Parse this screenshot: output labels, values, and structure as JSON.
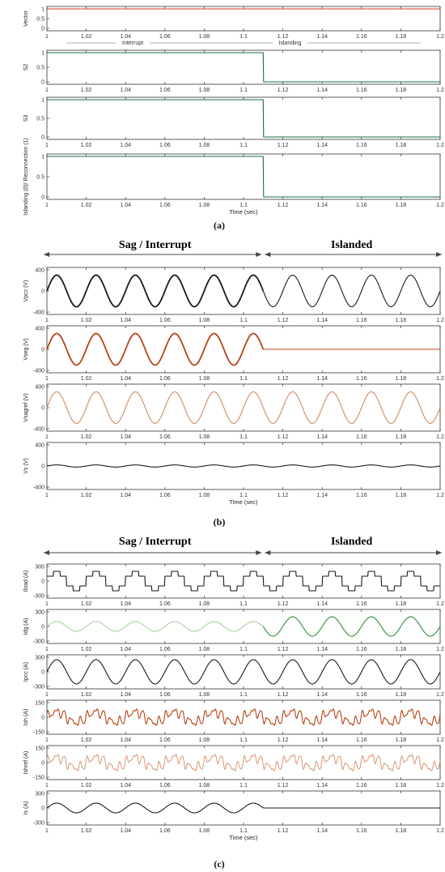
{
  "figure_title": "",
  "x_axis": {
    "label": "Time (sec)",
    "ticks": [
      "1",
      "1.02",
      "1.04",
      "1.06",
      "1.08",
      "1.1",
      "1.12",
      "1.14",
      "1.16",
      "1.18",
      "1.2"
    ],
    "range": [
      1.0,
      1.2
    ]
  },
  "colors": {
    "axis": "#333333",
    "black": "#1a1a1a",
    "brown": "#b5441a",
    "light_brown": "#d08a66",
    "green": "#2e8b3a",
    "light_green": "#a8d0a0",
    "tan": "#d9a080",
    "red": "#d43a2a",
    "dark_green": "#1e6e3e"
  },
  "panels": [
    {
      "caption": "(a)",
      "section_labels": [],
      "chart_data": [
        {
          "type": "line",
          "ylabel": "Vector",
          "ylim": [
            0,
            1
          ],
          "yticks": [
            "0",
            "0.5",
            "1"
          ],
          "show_xlabel": false,
          "annotation": {
            "left": "Interrupt",
            "right": "Islanding"
          },
          "series": [
            {
              "color_key": "red",
              "waveform": "const",
              "value": 1
            }
          ]
        },
        {
          "type": "line",
          "ylabel": "S2",
          "ylim": [
            0,
            1
          ],
          "yticks": [
            "0",
            "0.5",
            "1"
          ],
          "show_xlabel": false,
          "series": [
            {
              "color_key": "dark_green",
              "waveform": "step_down",
              "step_at": 1.11
            }
          ]
        },
        {
          "type": "line",
          "ylabel": "S3",
          "ylim": [
            0,
            1
          ],
          "yticks": [
            "0",
            "0.5",
            "1"
          ],
          "show_xlabel": false,
          "series": [
            {
              "color_key": "dark_green",
              "waveform": "step_down",
              "step_at": 1.11
            }
          ]
        },
        {
          "type": "line",
          "ylabel": "Islanding (0)/ Reconnection (1)",
          "ylim": [
            0,
            1
          ],
          "yticks": [
            "0",
            "0.5",
            "1"
          ],
          "show_xlabel": true,
          "series": [
            {
              "color_key": "dark_green",
              "waveform": "step_down",
              "step_at": 1.11
            }
          ]
        }
      ]
    },
    {
      "caption": "(b)",
      "section_labels": [
        "Sag / Interrupt",
        "Islanded"
      ],
      "chart_data": [
        {
          "type": "line",
          "ylabel": "Vpcc (V)",
          "ylim": [
            -400,
            400
          ],
          "yticks": [
            "-400",
            "0",
            "400"
          ],
          "show_xlabel": false,
          "series": [
            {
              "color_key": "black",
              "waveform": "sine",
              "amp": 300,
              "until": 1.11,
              "thick": true
            },
            {
              "color_key": "black",
              "waveform": "sine",
              "amp": 300,
              "from": 1.11
            }
          ]
        },
        {
          "type": "line",
          "ylabel": "Vseg (V)",
          "ylim": [
            -400,
            400
          ],
          "yticks": [
            "-400",
            "0",
            "400"
          ],
          "show_xlabel": false,
          "series": [
            {
              "color_key": "brown",
              "waveform": "sine",
              "amp": 300,
              "until": 1.11,
              "thick": true
            },
            {
              "color_key": "brown",
              "waveform": "const",
              "value": 0,
              "from": 1.11
            }
          ]
        },
        {
          "type": "line",
          "ylabel": "Vsagref (V)",
          "ylim": [
            -400,
            400
          ],
          "yticks": [
            "-400",
            "0",
            "400"
          ],
          "show_xlabel": false,
          "series": [
            {
              "color_key": "light_brown",
              "waveform": "sine",
              "amp": 300
            }
          ]
        },
        {
          "type": "line",
          "ylabel": "Vs (V)",
          "ylim": [
            -400,
            400
          ],
          "yticks": [
            "-400",
            "0",
            "400"
          ],
          "show_xlabel": true,
          "series": [
            {
              "color_key": "black",
              "waveform": "sine",
              "amp": 20
            }
          ]
        }
      ]
    },
    {
      "caption": "(c)",
      "section_labels": [
        "Sag / Interrupt",
        "Islanded"
      ],
      "chart_data": [
        {
          "type": "line",
          "ylabel": "Iload (A)",
          "ylim": [
            -300,
            300
          ],
          "yticks": [
            "-300",
            "0",
            "300"
          ],
          "show_xlabel": false,
          "series": [
            {
              "color_key": "black",
              "waveform": "staircase",
              "amp": 200
            }
          ]
        },
        {
          "type": "line",
          "ylabel": "Idg (A)",
          "ylim": [
            -300,
            300
          ],
          "yticks": [
            "-300",
            "0",
            "300"
          ],
          "show_xlabel": false,
          "series": [
            {
              "color_key": "light_green",
              "waveform": "sine",
              "amp": 100,
              "until": 1.11
            },
            {
              "color_key": "green",
              "waveform": "sine",
              "amp": 200,
              "from": 1.11
            }
          ]
        },
        {
          "type": "line",
          "ylabel": "Ipcc (A)",
          "ylim": [
            -300,
            300
          ],
          "yticks": [
            "-300",
            "0",
            "300"
          ],
          "show_xlabel": false,
          "series": [
            {
              "color_key": "black",
              "waveform": "sine",
              "amp": 250
            }
          ]
        },
        {
          "type": "line",
          "ylabel": "Ish (A)",
          "ylim": [
            -150,
            150
          ],
          "yticks": [
            "-150",
            "0",
            "150"
          ],
          "show_xlabel": false,
          "series": [
            {
              "color_key": "brown",
              "waveform": "harmonic",
              "amp": 100
            }
          ]
        },
        {
          "type": "line",
          "ylabel": "Ishref (A)",
          "ylim": [
            -150,
            150
          ],
          "yticks": [
            "-150",
            "0",
            "150"
          ],
          "show_xlabel": false,
          "series": [
            {
              "color_key": "tan",
              "waveform": "harmonic",
              "amp": 100
            }
          ]
        },
        {
          "type": "line",
          "ylabel": "Is (A)",
          "ylim": [
            -300,
            300
          ],
          "yticks": [
            "-300",
            "0",
            "300"
          ],
          "show_xlabel": true,
          "series": [
            {
              "color_key": "black",
              "waveform": "sine",
              "amp": 100,
              "until": 1.11
            },
            {
              "color_key": "black",
              "waveform": "const",
              "value": 0,
              "from": 1.11
            }
          ]
        }
      ]
    }
  ]
}
